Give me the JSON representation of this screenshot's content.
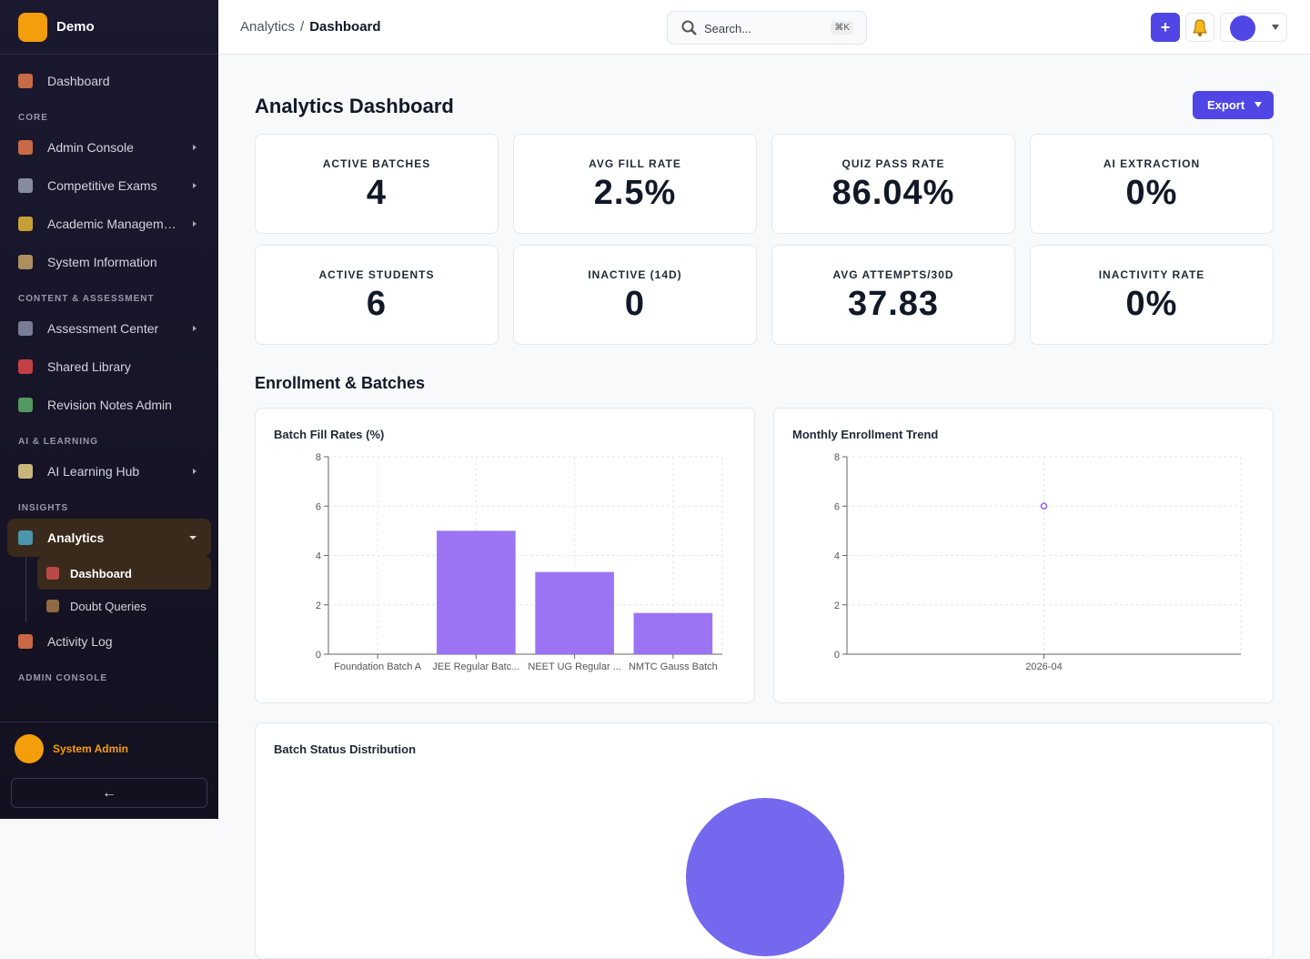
{
  "sidebar": {
    "brand": "Demo",
    "home": "Dashboard",
    "sections": [
      {
        "title": "CORE",
        "items": [
          {
            "label": "Admin Console",
            "expandable": true
          },
          {
            "label": "Competitive Exams",
            "expandable": true
          },
          {
            "label": "Academic Managem…",
            "expandable": true
          },
          {
            "label": "System Information",
            "expandable": false
          }
        ]
      },
      {
        "title": "CONTENT & ASSESSMENT",
        "items": [
          {
            "label": "Assessment Center",
            "expandable": true
          },
          {
            "label": "Shared Library",
            "expandable": false
          },
          {
            "label": "Revision Notes Admin",
            "expandable": false
          }
        ]
      },
      {
        "title": "AI & LEARNING",
        "items": [
          {
            "label": "AI Learning Hub",
            "expandable": true
          }
        ]
      },
      {
        "title": "INSIGHTS",
        "items": [
          {
            "label": "Analytics",
            "expandable": true,
            "active": true,
            "children": [
              {
                "label": "Dashboard",
                "active": true
              },
              {
                "label": "Doubt Queries",
                "active": false
              }
            ]
          },
          {
            "label": "Activity Log",
            "expandable": false
          }
        ]
      },
      {
        "title": "ADMIN CONSOLE",
        "items": []
      }
    ],
    "user": "System Admin",
    "collapse": "←"
  },
  "topbar": {
    "breadcrumb": [
      "Analytics",
      "Dashboard"
    ],
    "separator": "/",
    "search": "Search...",
    "shortcut": "⌘K",
    "add": "+"
  },
  "page": {
    "title": "Analytics Dashboard",
    "export": "Export",
    "section": "Enrollment & Batches",
    "kpis": [
      {
        "label": "ACTIVE BATCHES",
        "value": "4"
      },
      {
        "label": "AVG FILL RATE",
        "value": "2.5%"
      },
      {
        "label": "QUIZ PASS RATE",
        "value": "86.04%"
      },
      {
        "label": "AI EXTRACTION",
        "value": "0%"
      },
      {
        "label": "ACTIVE STUDENTS",
        "value": "6"
      },
      {
        "label": "INACTIVE (14D)",
        "value": "0"
      },
      {
        "label": "AVG ATTEMPTS/30D",
        "value": "37.83"
      },
      {
        "label": "INACTIVITY RATE",
        "value": "0%"
      }
    ]
  },
  "chart_data": [
    {
      "type": "bar",
      "title": "Batch Fill Rates (%)",
      "categories": [
        "Foundation Batch A",
        "JEE Regular Batc...",
        "NEET UG Regular ...",
        "NMTC Gauss Batch"
      ],
      "values": [
        0,
        5,
        3.33,
        1.67
      ],
      "color": "#9b74f4",
      "ylim": [
        0,
        8
      ],
      "yticks": [
        0,
        2,
        4,
        6,
        8
      ],
      "grid": true
    },
    {
      "type": "line",
      "title": "Monthly Enrollment Trend",
      "categories": [
        "2026-04"
      ],
      "values": [
        6
      ],
      "color": "#8b5cf6",
      "ylim": [
        0,
        8
      ],
      "yticks": [
        0,
        2,
        4,
        6,
        8
      ],
      "grid": true
    },
    {
      "type": "pie",
      "title": "Batch Status Distribution",
      "categories": [
        null
      ],
      "values": [
        100
      ],
      "colors": [
        "#7468ee"
      ]
    }
  ]
}
